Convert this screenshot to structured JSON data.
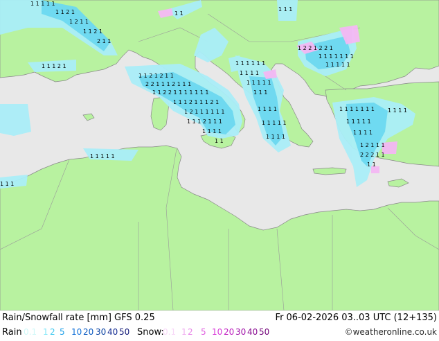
{
  "title": "Rain/Snowfall rate [mm] GFS 0.25",
  "datetime": "Fr 06-02-2026 03..03 UTC (12+135)",
  "credit": "©weatheronline.co.uk",
  "legend": {
    "rain_label": "Rain",
    "rain_values": [
      "0.1",
      "1",
      "2",
      "5",
      "10",
      "20",
      "30",
      "40",
      "50"
    ],
    "rain_colors": [
      "#d0f8f8",
      "#88e8f8",
      "#40c8f0",
      "#20a0e8",
      "#1070d8",
      "#0858c0",
      "#0840a0",
      "#102890",
      "#101878"
    ],
    "snow_label": "Snow:",
    "snow_values": [
      "0.1",
      "1",
      "2",
      "5",
      "10",
      "20",
      "30",
      "40",
      "50"
    ],
    "snow_colors": [
      "#f8d8f8",
      "#f0b0f0",
      "#e888e8",
      "#e060e0",
      "#d838d8",
      "#c020c0",
      "#a010a8",
      "#880890",
      "#700078"
    ]
  },
  "colors": {
    "land": "#b8f2a0",
    "sea": "#e8e8e8",
    "border": "#999999",
    "rain_light": "#aaeef8",
    "rain_medium": "#6cd8f0",
    "snow_light": "#f4b8f4"
  }
}
